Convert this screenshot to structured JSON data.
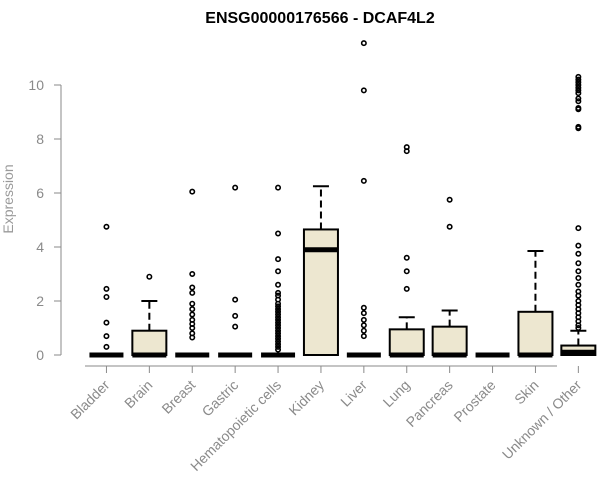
{
  "chart_data": {
    "type": "boxplot",
    "title": "ENSG00000176566 - DCAF4L2",
    "xlabel": "",
    "ylabel": "Expression",
    "ylim": [
      0,
      11.5
    ],
    "yticks": [
      "0",
      "2",
      "4",
      "6",
      "8",
      "10"
    ],
    "categories": [
      "Bladder",
      "Brain",
      "Breast",
      "Gastric",
      "Hematopoietic cells",
      "Kidney",
      "Liver",
      "Lung",
      "Pancreas",
      "Prostate",
      "Skin",
      "Unknown / Other"
    ],
    "box_fill": "#ede7d0",
    "grid": false,
    "boxes": [
      {
        "q1": 0,
        "median": 0,
        "q3": 0,
        "whisker_low": 0,
        "whisker_high": 0,
        "outliers": [
          4.75,
          2.45,
          2.15,
          1.2,
          0.7,
          0.3
        ]
      },
      {
        "q1": 0,
        "median": 0,
        "q3": 0.9,
        "whisker_low": 0,
        "whisker_high": 2.0,
        "outliers": [
          2.9
        ]
      },
      {
        "q1": 0,
        "median": 0,
        "q3": 0,
        "whisker_low": 0,
        "whisker_high": 0,
        "outliers": [
          6.05,
          3.0,
          2.5,
          2.3,
          1.9,
          1.7,
          1.5,
          1.3,
          1.15,
          1.0,
          0.8,
          0.65
        ]
      },
      {
        "q1": 0,
        "median": 0,
        "q3": 0,
        "whisker_low": 0,
        "whisker_high": 0,
        "outliers": [
          6.2,
          2.05,
          1.45,
          1.05
        ]
      },
      {
        "q1": 0,
        "median": 0,
        "q3": 0,
        "whisker_low": 0,
        "whisker_high": 0,
        "outliers": [
          6.2,
          4.5,
          3.55,
          3.1,
          2.6,
          2.3,
          2.2,
          2.05,
          1.9,
          1.8,
          1.7,
          1.6,
          1.5,
          1.4,
          1.3,
          1.2,
          1.1,
          1.0,
          0.9,
          0.8,
          0.7,
          0.6,
          0.5,
          0.4,
          0.3,
          0.2
        ]
      },
      {
        "q1": 0,
        "median": 3.9,
        "q3": 4.65,
        "whisker_low": 0,
        "whisker_high": 6.25,
        "outliers": []
      },
      {
        "q1": 0,
        "median": 0,
        "q3": 0,
        "whisker_low": 0,
        "whisker_high": 0,
        "outliers": [
          11.55,
          9.8,
          6.45,
          1.75,
          1.55,
          1.3,
          1.1,
          0.9,
          0.7
        ]
      },
      {
        "q1": 0,
        "median": 0,
        "q3": 0.95,
        "whisker_low": 0,
        "whisker_high": 1.4,
        "outliers": [
          7.7,
          7.55,
          3.6,
          3.1,
          2.45
        ]
      },
      {
        "q1": 0,
        "median": 0,
        "q3": 1.05,
        "whisker_low": 0,
        "whisker_high": 1.65,
        "outliers": [
          5.75,
          4.75
        ]
      },
      {
        "q1": 0,
        "median": 0,
        "q3": 0,
        "whisker_low": 0,
        "whisker_high": 0,
        "outliers": []
      },
      {
        "q1": 0,
        "median": 0,
        "q3": 1.6,
        "whisker_low": 0,
        "whisker_high": 3.85,
        "outliers": []
      },
      {
        "q1": 0,
        "median": 0.1,
        "q3": 0.35,
        "whisker_low": 0,
        "whisker_high": 0.9,
        "outliers": [
          10.3,
          10.2,
          10.1,
          10.0,
          9.9,
          9.8,
          9.7,
          9.5,
          9.4,
          9.15,
          9.1,
          8.45,
          8.4,
          4.7,
          4.05,
          3.75,
          3.4,
          3.1,
          2.85,
          2.6,
          2.35,
          2.2,
          2.0,
          1.85,
          1.7,
          1.55,
          1.4,
          1.25,
          1.1,
          1.0
        ]
      }
    ]
  }
}
